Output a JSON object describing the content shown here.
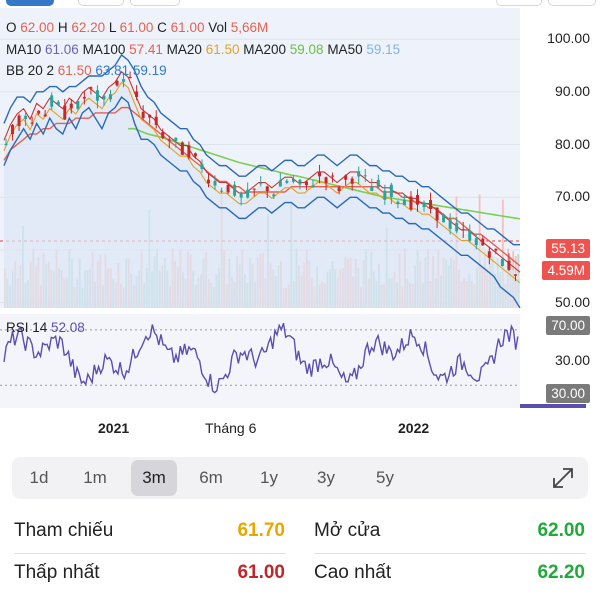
{
  "legend": {
    "ohlc": [
      {
        "k": "O",
        "v": "62.00"
      },
      {
        "k": "H",
        "v": "62.20"
      },
      {
        "k": "L",
        "v": "61.00"
      },
      {
        "k": "C",
        "v": "61.00"
      },
      {
        "k": "Vol",
        "v": "5,66M"
      }
    ],
    "ma": [
      {
        "k": "MA10",
        "v": "61.06",
        "color": "#6c5fb8"
      },
      {
        "k": "MA100",
        "v": "57.41",
        "color": "#e86050"
      },
      {
        "k": "MA20",
        "v": "61.50",
        "color": "#e8a020"
      },
      {
        "k": "MA200",
        "v": "59.08",
        "color": "#6cbf3f"
      },
      {
        "k": "MA50",
        "v": "59.15",
        "color": "#7fb4e8"
      }
    ],
    "bb": {
      "k": "BB 20 2",
      "v": [
        "61.50",
        "63.81",
        "59.19"
      ],
      "colors": [
        "#e86050",
        "#3478c8",
        "#3478c8"
      ]
    },
    "rsi": {
      "k": "RSI 14",
      "v": "52.08",
      "color": "#5a4fb0"
    }
  },
  "tags": {
    "price": "55.13",
    "volume": "4.59M",
    "rsi_top": "70.00",
    "rsi_bottom": "30.00"
  },
  "colors": {
    "up": "#26a69a",
    "down": "#ef5350",
    "tag_red": "#ef5350",
    "tag_gray": "#7a7a7a",
    "rsi_line": "#5a4fb0"
  },
  "range_buttons": [
    "1d",
    "1m",
    "3m",
    "6m",
    "1y",
    "3y",
    "5y"
  ],
  "range_selected": "3m",
  "stats": [
    {
      "label": "Tham chiếu",
      "value": "61.70",
      "color": "#e8a800"
    },
    {
      "label": "Mở cửa",
      "value": "62.00",
      "color": "#1faa3a"
    },
    {
      "label": "Thấp nhất",
      "value": "61.00",
      "color": "#c0262a"
    },
    {
      "label": "Cao nhất",
      "value": "62.20",
      "color": "#1faa3a"
    }
  ],
  "chart_data": {
    "type": "line",
    "x_ticks": [
      "2021",
      "Tháng 6",
      "2022"
    ],
    "y_ticks": [
      "100.00",
      "90.00",
      "80.00",
      "70.00",
      "60.00",
      "50.00"
    ],
    "ylim": [
      49,
      104
    ],
    "reference_price": 61.7,
    "last_price": 55.13,
    "series": [
      {
        "values": [
          80,
          83,
          85,
          86,
          84,
          87,
          86,
          88,
          87,
          86,
          88,
          87,
          89,
          90,
          89,
          88,
          90,
          91,
          93,
          92,
          89,
          86,
          85,
          84,
          82,
          81,
          80,
          79,
          79,
          77,
          76,
          74,
          73,
          72,
          72,
          71,
          70,
          70,
          71,
          72,
          72,
          71,
          72,
          73,
          73,
          72,
          72,
          73,
          74,
          74,
          73,
          72,
          73,
          74,
          74,
          73,
          72,
          72,
          71,
          71,
          70,
          70,
          69,
          69,
          68,
          68,
          67,
          66,
          65,
          64,
          63,
          63,
          62,
          61,
          60,
          59,
          58,
          57,
          56,
          55
        ]
      },
      {
        "name": "MA100",
        "values": [
          77,
          79,
          80,
          81,
          82,
          82,
          83,
          83,
          84,
          84,
          84,
          85,
          85,
          85,
          86,
          86,
          86,
          86,
          87,
          87,
          86,
          85,
          84,
          83,
          82,
          81,
          80,
          79,
          78,
          77,
          76,
          75,
          74,
          73,
          73,
          72,
          72,
          71,
          71,
          71,
          71,
          71,
          71,
          71,
          72,
          72,
          72,
          72,
          72,
          72,
          72,
          72,
          72,
          72,
          72,
          72,
          72,
          72,
          71,
          71,
          71,
          70,
          70,
          69,
          69,
          68,
          68,
          67,
          66,
          66,
          65,
          64,
          63,
          63,
          62,
          61,
          60,
          59,
          58,
          57
        ]
      },
      {
        "name": "MA200",
        "values": [
          null,
          null,
          null,
          null,
          null,
          null,
          null,
          null,
          null,
          null,
          null,
          null,
          null,
          null,
          null,
          null,
          null,
          null,
          null,
          83,
          83,
          82.5,
          82,
          81.7,
          81.4,
          81,
          80.6,
          80.2,
          79.8,
          79.4,
          79,
          78.6,
          78.2,
          77.8,
          77.4,
          77,
          76.6,
          76.3,
          76,
          75.7,
          75.4,
          75.1,
          74.8,
          74.5,
          74.2,
          74,
          73.7,
          73.4,
          73.1,
          72.8,
          72.5,
          72.2,
          71.9,
          71.6,
          71.3,
          71,
          70.7,
          70.4,
          70.1,
          69.9,
          69.7,
          69.5,
          69.3,
          69.1,
          68.9,
          68.7,
          68.5,
          68.3,
          68.1,
          67.9,
          67.7,
          67.5,
          67.3,
          67.1,
          66.9,
          66.7,
          66.5,
          66.3,
          66.1,
          65.9
        ]
      },
      {
        "name": "BB upper",
        "values": [
          84,
          87,
          89,
          89,
          88,
          90,
          90,
          91,
          91,
          90,
          91,
          91,
          92,
          93,
          93,
          93,
          94,
          95,
          97,
          96,
          94,
          91,
          89,
          88,
          86,
          85,
          84,
          83,
          83,
          81,
          80,
          78,
          77,
          76,
          76,
          75,
          74,
          74,
          75,
          76,
          76,
          75,
          76,
          77,
          77,
          76,
          76,
          77,
          78,
          78,
          77,
          76,
          77,
          78,
          78,
          77,
          76,
          76,
          75,
          75,
          74,
          74,
          73,
          73,
          72,
          72,
          71,
          70,
          69,
          68,
          67,
          67,
          66,
          65,
          64,
          64,
          63,
          62,
          61,
          61
        ]
      },
      {
        "name": "BB lower",
        "values": [
          76,
          79,
          81,
          83,
          81,
          84,
          82,
          85,
          83,
          82,
          85,
          83,
          86,
          87,
          85,
          83,
          86,
          87,
          89,
          88,
          84,
          81,
          81,
          80,
          78,
          77,
          76,
          75,
          75,
          73,
          72,
          70,
          69,
          68,
          68,
          67,
          66,
          66,
          67,
          68,
          68,
          67,
          68,
          69,
          69,
          68,
          68,
          69,
          70,
          70,
          69,
          68,
          69,
          70,
          70,
          69,
          68,
          68,
          67,
          67,
          66,
          66,
          65,
          65,
          64,
          64,
          63,
          62,
          61,
          60,
          59,
          59,
          58,
          57,
          56,
          55,
          53,
          52,
          51,
          49
        ]
      }
    ]
  }
}
